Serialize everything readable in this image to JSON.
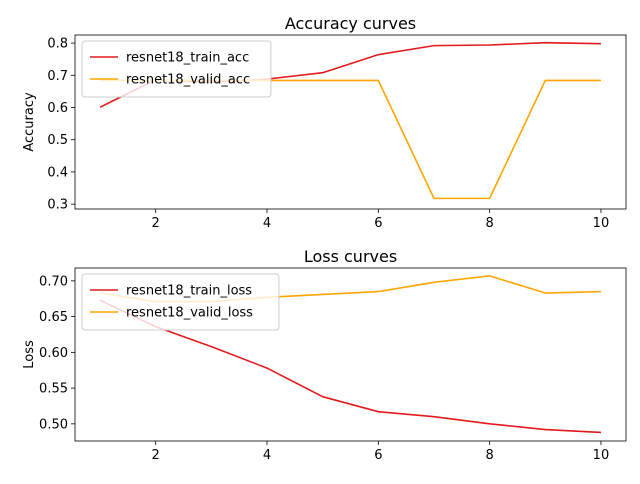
{
  "chart_data": [
    {
      "type": "line",
      "title": "Accuracy curves",
      "xlabel": "",
      "ylabel": "Accuracy",
      "xlim": [
        0.55,
        10.45
      ],
      "ylim": [
        0.285,
        0.825
      ],
      "xticks": [
        2,
        4,
        6,
        8,
        10
      ],
      "yticks": [
        0.3,
        0.4,
        0.5,
        0.6,
        0.7,
        0.8
      ],
      "ytick_decimals": 1,
      "grid": false,
      "legend": "upper-left",
      "x": [
        1,
        2,
        3,
        4,
        5,
        6,
        7,
        8,
        9,
        10
      ],
      "series": [
        {
          "name": "resnet18_train_acc",
          "color": "#e31a1c",
          "values": [
            0.601,
            0.686,
            0.678,
            0.688,
            0.708,
            0.764,
            0.792,
            0.794,
            0.801,
            0.798
          ]
        },
        {
          "name": "resnet18_valid_acc",
          "color": "#ffa500",
          "values": [
            0.684,
            0.684,
            0.684,
            0.684,
            0.684,
            0.684,
            0.318,
            0.318,
            0.684,
            0.684
          ]
        }
      ]
    },
    {
      "type": "line",
      "title": "Loss curves",
      "xlabel": "",
      "ylabel": "Loss",
      "xlim": [
        0.55,
        10.45
      ],
      "ylim": [
        0.476,
        0.718
      ],
      "xticks": [
        2,
        4,
        6,
        8,
        10
      ],
      "yticks": [
        0.5,
        0.55,
        0.6,
        0.65,
        0.7
      ],
      "ytick_decimals": 2,
      "grid": false,
      "legend": "upper-left",
      "x": [
        1,
        2,
        3,
        4,
        5,
        6,
        7,
        8,
        9,
        10
      ],
      "series": [
        {
          "name": "resnet18_train_loss",
          "color": "#e31a1c",
          "values": [
            0.673,
            0.636,
            0.608,
            0.578,
            0.538,
            0.517,
            0.51,
            0.5,
            0.492,
            0.488
          ]
        },
        {
          "name": "resnet18_valid_loss",
          "color": "#ffa500",
          "values": [
            0.683,
            0.671,
            0.671,
            0.677,
            0.681,
            0.685,
            0.698,
            0.707,
            0.683,
            0.685
          ]
        }
      ]
    }
  ]
}
